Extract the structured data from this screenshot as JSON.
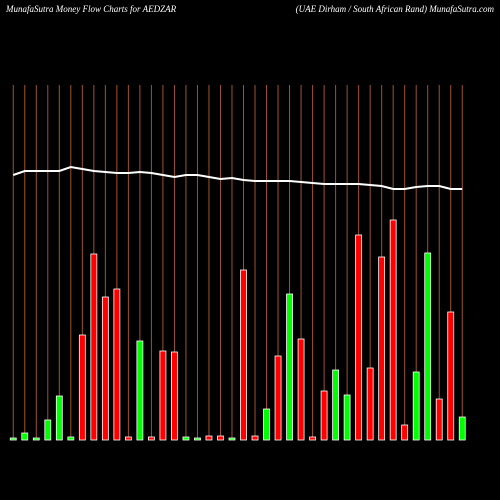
{
  "chart_data": {
    "type": "bar",
    "title": "MunafaSutra  Money Flow  Charts for AEDZAR",
    "subtitle": "(UAE Dirham / South African  Rand) MunafaSutra.com",
    "values": [
      2,
      7,
      2,
      20,
      44,
      3,
      105,
      186,
      143,
      151,
      3,
      99,
      3,
      89,
      88,
      3,
      2,
      4,
      4,
      2,
      170,
      4,
      31,
      84,
      146,
      101,
      3,
      49,
      70,
      45,
      205,
      72,
      183,
      220,
      15,
      68,
      187,
      41,
      128,
      23
    ],
    "colors": [
      "#00ff00",
      "#00ff00",
      "#00ff00",
      "#00ff00",
      "#00ff00",
      "#00ff00",
      "#ff0000",
      "#ff0000",
      "#ff0000",
      "#ff0000",
      "#ff0000",
      "#00ff00",
      "#ff0000",
      "#ff0000",
      "#ff0000",
      "#00ff00",
      "#00ff00",
      "#ff0000",
      "#ff0000",
      "#00ff00",
      "#ff0000",
      "#ff0000",
      "#00ff00",
      "#ff0000",
      "#00ff00",
      "#ff0000",
      "#ff0000",
      "#ff0000",
      "#00ff00",
      "#00ff00",
      "#ff0000",
      "#ff0000",
      "#ff0000",
      "#ff0000",
      "#ff0000",
      "#00ff00",
      "#00ff00",
      "#ff0000",
      "#ff0000",
      "#00ff00"
    ],
    "line": [
      265,
      269,
      269,
      269,
      269,
      273,
      271,
      269,
      268,
      267,
      267,
      268,
      267,
      265,
      263,
      265,
      265,
      263,
      261,
      262,
      260,
      259,
      259,
      259,
      259,
      258,
      257,
      256,
      256,
      256,
      256,
      255,
      254,
      251,
      251,
      253,
      254,
      254,
      251,
      251
    ],
    "line_color": "#ffffff",
    "grid_color": "#a0522d",
    "ylim": [
      0,
      355
    ]
  }
}
